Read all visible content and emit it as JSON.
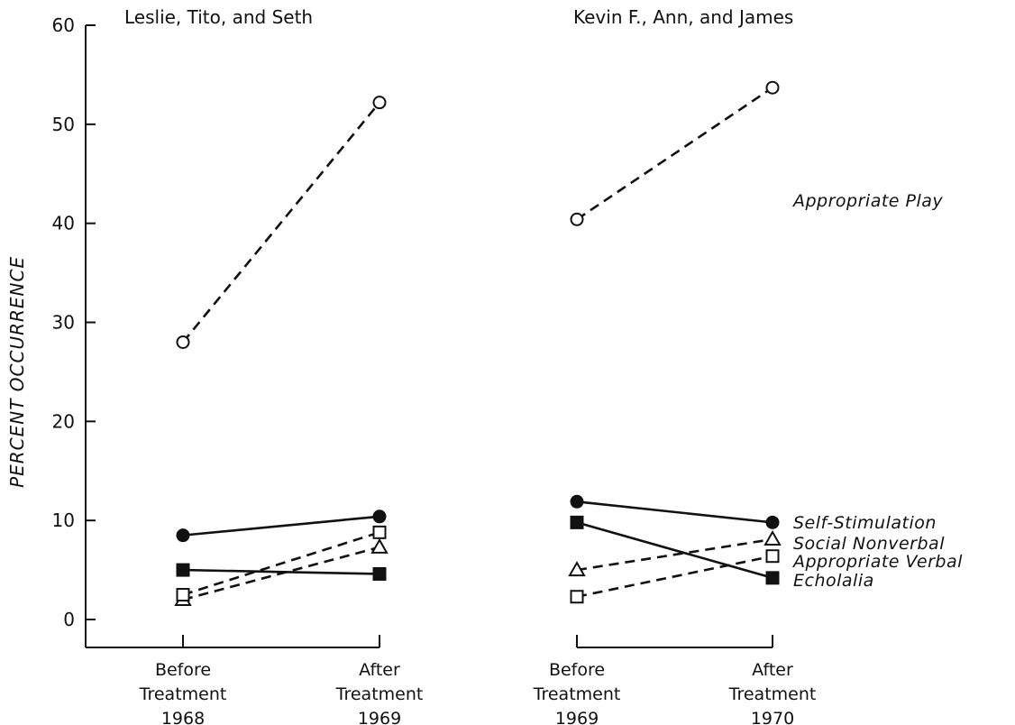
{
  "chart_data": {
    "type": "line",
    "ylabel": "PERCENT OCCURRENCE",
    "ylim": [
      0,
      60
    ],
    "yticks": [
      0,
      10,
      20,
      30,
      40,
      50,
      60
    ],
    "panels": [
      {
        "title": "Leslie, Tito, and Seth",
        "categories": [
          {
            "line1": "Before",
            "line2": "Treatment",
            "line3": "1968"
          },
          {
            "line1": "After",
            "line2": "Treatment",
            "line3": "1969"
          }
        ],
        "series": [
          {
            "name": "Appropriate Play",
            "values": [
              28,
              52.2
            ]
          },
          {
            "name": "Self-Stimulation",
            "values": [
              8.5,
              10.4
            ]
          },
          {
            "name": "Social Nonverbal",
            "values": [
              2,
              7.3
            ]
          },
          {
            "name": "Appropriate Verbal",
            "values": [
              2.5,
              8.8
            ]
          },
          {
            "name": "Echolalia",
            "values": [
              5,
              4.6
            ]
          }
        ]
      },
      {
        "title": "Kevin F., Ann, and James",
        "categories": [
          {
            "line1": "Before",
            "line2": "Treatment",
            "line3": "1969"
          },
          {
            "line1": "After",
            "line2": "Treatment",
            "line3": "1970"
          }
        ],
        "series": [
          {
            "name": "Appropriate Play",
            "values": [
              40.4,
              53.7
            ]
          },
          {
            "name": "Self-Stimulation",
            "values": [
              11.9,
              9.8
            ]
          },
          {
            "name": "Social Nonverbal",
            "values": [
              5,
              8.1
            ]
          },
          {
            "name": "Appropriate Verbal",
            "values": [
              2.3,
              6.4
            ]
          },
          {
            "name": "Echolalia",
            "values": [
              9.8,
              4.2
            ]
          }
        ]
      }
    ],
    "series_style": {
      "Appropriate Play": {
        "marker": "open-circle",
        "dash": true
      },
      "Self-Stimulation": {
        "marker": "filled-circle",
        "dash": false
      },
      "Social Nonverbal": {
        "marker": "open-triangle",
        "dash": true
      },
      "Appropriate Verbal": {
        "marker": "open-square",
        "dash": true
      },
      "Echolalia": {
        "marker": "filled-square",
        "dash": false
      }
    },
    "legend_labels": [
      {
        "series": "Appropriate Play",
        "text": "Appropriate Play"
      },
      {
        "series": "Self-Stimulation",
        "text": "Self-Stimulation"
      },
      {
        "series": "Social Nonverbal",
        "text": "Social Nonverbal"
      },
      {
        "series": "Appropriate Verbal",
        "text": "Appropriate Verbal"
      },
      {
        "series": "Echolalia",
        "text": "Echolalia"
      }
    ],
    "colors": {
      "ink": "#111111",
      "background": "#ffffff"
    }
  }
}
